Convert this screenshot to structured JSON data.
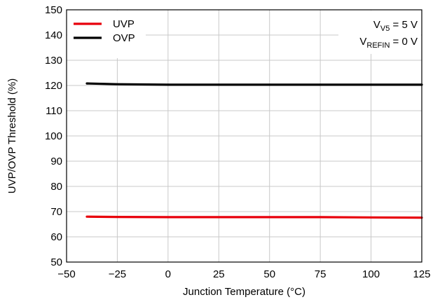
{
  "chart_data": {
    "type": "line",
    "title": "",
    "xlabel": "Junction Temperature (°C)",
    "ylabel": "UVP/OVP Threshold (%)",
    "xlim": [
      -50,
      125
    ],
    "ylim": [
      50,
      150
    ],
    "xticks": [
      -50,
      -25,
      0,
      25,
      50,
      75,
      100,
      125
    ],
    "xtick_labels": [
      "−50",
      "−25",
      "0",
      "25",
      "50",
      "75",
      "100",
      "125"
    ],
    "yticks": [
      50,
      60,
      70,
      80,
      90,
      100,
      110,
      120,
      130,
      140,
      150
    ],
    "ytick_labels": [
      "50",
      "60",
      "70",
      "80",
      "90",
      "100",
      "110",
      "120",
      "130",
      "140",
      "150"
    ],
    "grid": true,
    "legend_position": "top-left",
    "series": [
      {
        "name": "UVP",
        "color": "#e8000b",
        "x": [
          -40,
          -25,
          0,
          25,
          50,
          75,
          100,
          125
        ],
        "y": [
          68.0,
          67.9,
          67.8,
          67.8,
          67.8,
          67.8,
          67.7,
          67.6
        ]
      },
      {
        "name": "OVP",
        "color": "#000000",
        "x": [
          -40,
          -25,
          0,
          25,
          50,
          75,
          100,
          125
        ],
        "y": [
          120.8,
          120.5,
          120.3,
          120.3,
          120.3,
          120.3,
          120.3,
          120.3
        ]
      }
    ],
    "annotations": [
      {
        "main": "V",
        "sub": "V5",
        "rest": " = 5 V"
      },
      {
        "main": "V",
        "sub": "REFIN",
        "rest": " = 0 V"
      }
    ]
  }
}
